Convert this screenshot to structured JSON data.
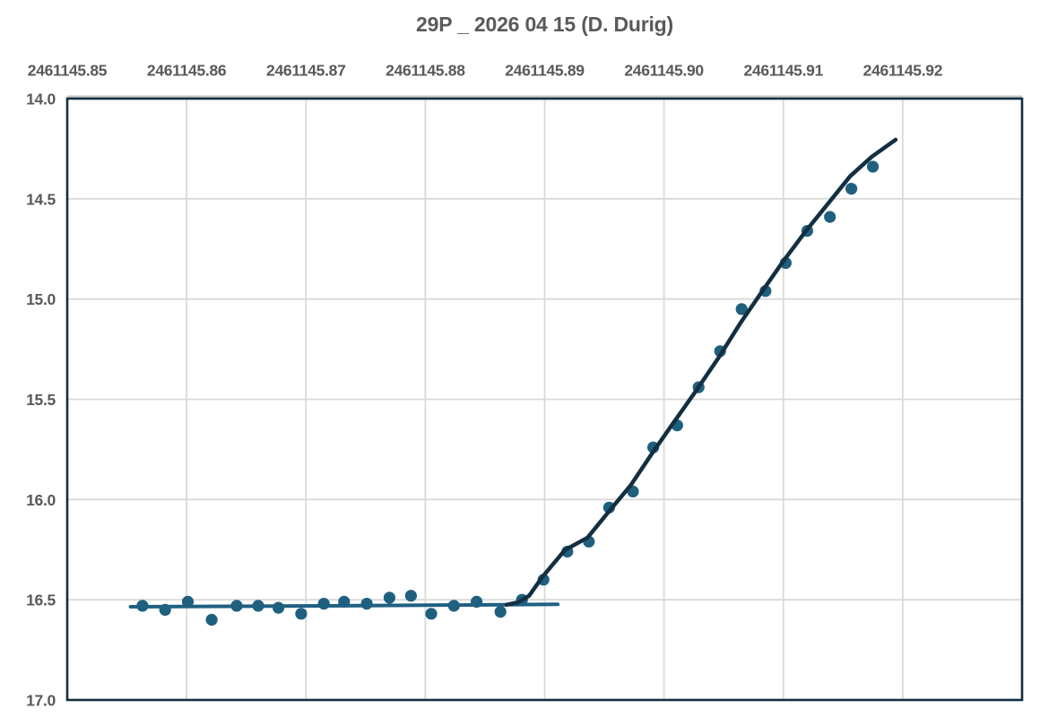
{
  "chart_data": {
    "type": "scatter",
    "title": "29P _ 2026 04 15 (D. Durig)",
    "xlabel": "",
    "ylabel": "",
    "x_axis": {
      "min": 2461145.85,
      "max": 2461145.93,
      "tick_labels": [
        "2461145.85",
        "2461145.86",
        "2461145.87",
        "2461145.88",
        "2461145.89",
        "2461145.90",
        "2461145.91",
        "2461145.92"
      ],
      "labels_position": "top",
      "grid": true
    },
    "y_axis": {
      "min": 14.0,
      "max": 17.0,
      "reversed": true,
      "tick_labels": [
        "14.0",
        "14.5",
        "15.0",
        "15.5",
        "16.0",
        "16.5",
        "17.0"
      ],
      "grid": true
    },
    "legend": false,
    "style": {
      "background": "#ffffff",
      "text_color": "#595959",
      "gridline_color": "#d9d9d9",
      "top_axis_line_color": "#c8c8c8",
      "plot_border_color": "#132f41",
      "marker_color": "#1f607f",
      "quiescent_line_color": "#1f6082",
      "outburst_line_color": "#132f41"
    },
    "series": [
      {
        "name": "quiescent-level-fit",
        "kind": "line",
        "color": "#1f6082",
        "width": 4,
        "points": [
          [
            2461145.8553,
            16.535
          ],
          [
            2461145.8732,
            16.53
          ],
          [
            2461145.8911,
            16.523
          ]
        ]
      },
      {
        "name": "observations",
        "kind": "scatter",
        "color": "#1f607f",
        "marker_radius": 6.6,
        "points": [
          [
            2461145.8563,
            16.53
          ],
          [
            2461145.8582,
            16.55
          ],
          [
            2461145.8601,
            16.51
          ],
          [
            2461145.8621,
            16.6
          ],
          [
            2461145.8642,
            16.53
          ],
          [
            2461145.866,
            16.53
          ],
          [
            2461145.8677,
            16.54
          ],
          [
            2461145.8696,
            16.57
          ],
          [
            2461145.8715,
            16.52
          ],
          [
            2461145.8732,
            16.51
          ],
          [
            2461145.8751,
            16.52
          ],
          [
            2461145.877,
            16.49
          ],
          [
            2461145.8788,
            16.48
          ],
          [
            2461145.8805,
            16.57
          ],
          [
            2461145.8824,
            16.53
          ],
          [
            2461145.8843,
            16.51
          ],
          [
            2461145.8863,
            16.56
          ],
          [
            2461145.8881,
            16.5
          ],
          [
            2461145.8899,
            16.4
          ],
          [
            2461145.8919,
            16.26
          ],
          [
            2461145.8937,
            16.21
          ],
          [
            2461145.8954,
            16.04
          ],
          [
            2461145.8974,
            15.96
          ],
          [
            2461145.8991,
            15.74
          ],
          [
            2461145.9011,
            15.63
          ],
          [
            2461145.9029,
            15.44
          ],
          [
            2461145.9047,
            15.26
          ],
          [
            2461145.9065,
            15.05
          ],
          [
            2461145.9085,
            14.96
          ],
          [
            2461145.9102,
            14.82
          ],
          [
            2461145.912,
            14.66
          ],
          [
            2461145.9139,
            14.59
          ],
          [
            2461145.9157,
            14.45
          ],
          [
            2461145.9175,
            14.34
          ]
        ]
      },
      {
        "name": "outburst-rise-fit",
        "kind": "line",
        "color": "#132f41",
        "width": 4.5,
        "points": [
          [
            2461145.8868,
            16.525
          ],
          [
            2461145.8878,
            16.512
          ],
          [
            2461145.8887,
            16.48
          ],
          [
            2461145.8898,
            16.387
          ],
          [
            2461145.8917,
            16.252
          ],
          [
            2461145.8936,
            16.19
          ],
          [
            2461145.8952,
            16.073
          ],
          [
            2461145.8972,
            15.93
          ],
          [
            2461145.899,
            15.77
          ],
          [
            2461145.9009,
            15.608
          ],
          [
            2461145.9027,
            15.456
          ],
          [
            2461145.9046,
            15.29
          ],
          [
            2461145.9064,
            15.12
          ],
          [
            2461145.9083,
            14.955
          ],
          [
            2461145.91,
            14.81
          ],
          [
            2461145.9119,
            14.66
          ],
          [
            2461145.9138,
            14.52
          ],
          [
            2461145.9156,
            14.387
          ],
          [
            2461145.9174,
            14.29
          ],
          [
            2461145.9194,
            14.205
          ]
        ]
      }
    ]
  }
}
